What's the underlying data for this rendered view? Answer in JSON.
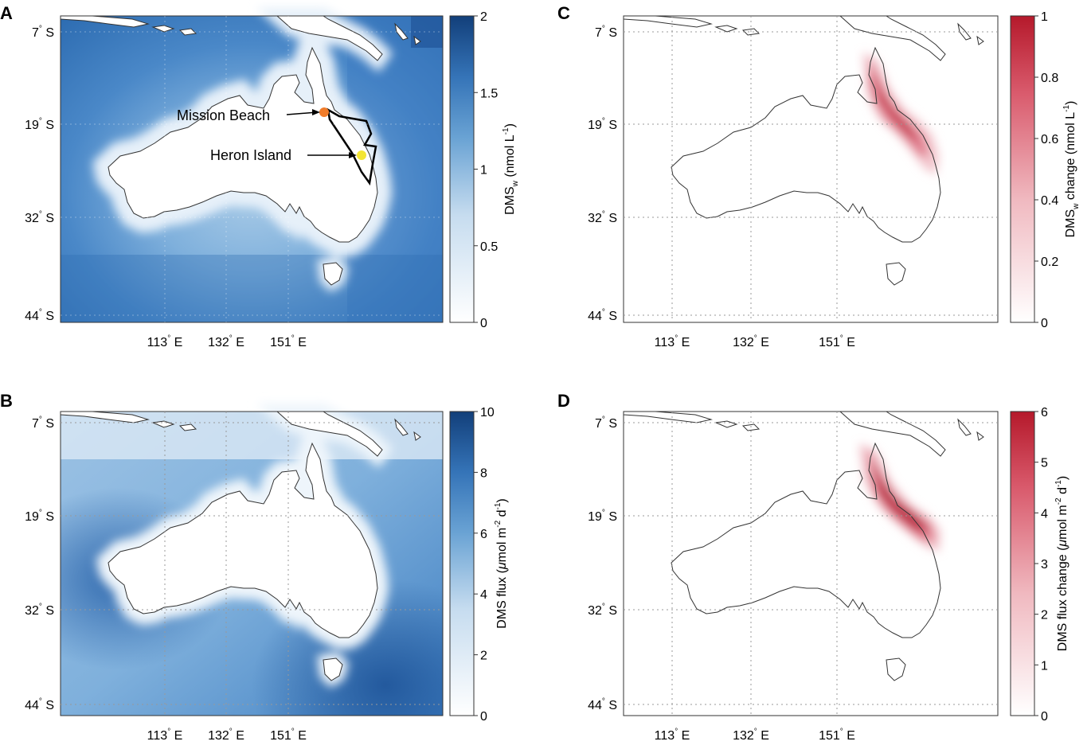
{
  "panels": [
    {
      "id": "A",
      "letter": "A",
      "colormap": "blue",
      "lat_ticks": [
        "7",
        "19",
        "32",
        "44"
      ],
      "lat_suffix": "S",
      "lon_ticks": [
        "113",
        "132",
        "151"
      ],
      "lon_suffix": "E",
      "colorbar": {
        "ticks": [
          "0",
          "0.5",
          "1",
          "1.5",
          "2"
        ],
        "range": [
          0,
          2
        ],
        "label": {
          "main": "DMS",
          "sub": "w",
          "unit_open": " (nmol L",
          "sup": "-1",
          "close": ")"
        }
      },
      "annotations": [
        {
          "text": "Mission Beach",
          "marker_color": "#f07c2a"
        },
        {
          "text": "Heron Island",
          "marker_color": "#f3e533"
        }
      ]
    },
    {
      "id": "B",
      "letter": "B",
      "colormap": "blue",
      "lat_ticks": [
        "7",
        "19",
        "32",
        "44"
      ],
      "lat_suffix": "S",
      "lon_ticks": [
        "113",
        "132",
        "151"
      ],
      "lon_suffix": "E",
      "colorbar": {
        "ticks": [
          "0",
          "2",
          "4",
          "6",
          "8",
          "10"
        ],
        "range": [
          0,
          10
        ],
        "label": {
          "main": "DMS flux (",
          "mu": "μ",
          "unit": "mol m",
          "sup1": "-2",
          "mid": " d",
          "sup2": "-1",
          "close": ")"
        }
      }
    },
    {
      "id": "C",
      "letter": "C",
      "colormap": "red",
      "lat_ticks": [
        "7",
        "19",
        "32",
        "44"
      ],
      "lat_suffix": "S",
      "lon_ticks": [
        "113",
        "132",
        "151"
      ],
      "lon_suffix": "E",
      "colorbar": {
        "ticks": [
          "0",
          "0.2",
          "0.4",
          "0.6",
          "0.8",
          "1"
        ],
        "range": [
          0,
          1
        ],
        "label": {
          "main": "DMS",
          "sub": "w",
          "unit_open": " change (nmol L",
          "sup": "-1",
          "close": ")"
        }
      }
    },
    {
      "id": "D",
      "letter": "D",
      "colormap": "red",
      "lat_ticks": [
        "7",
        "19",
        "32",
        "44"
      ],
      "lat_suffix": "S",
      "lon_ticks": [
        "113",
        "132",
        "151"
      ],
      "lon_suffix": "E",
      "colorbar": {
        "ticks": [
          "0",
          "1",
          "2",
          "3",
          "4",
          "5",
          "6"
        ],
        "range": [
          0,
          6
        ],
        "label": {
          "main": "DMS flux change (",
          "mu": "μ",
          "unit": "mol m",
          "sup1": "-2",
          "mid": " d",
          "sup2": "-1",
          "close": ")"
        }
      }
    }
  ],
  "colors": {
    "blue_low": "#ffffff",
    "blue_high": "#123f7a",
    "red_low": "#ffffff",
    "red_high": "#b5192b",
    "ocean_a": "#3f7fc2",
    "ocean_b": "#9ec3e3",
    "land": "#ffffff",
    "coast": "#333333"
  }
}
